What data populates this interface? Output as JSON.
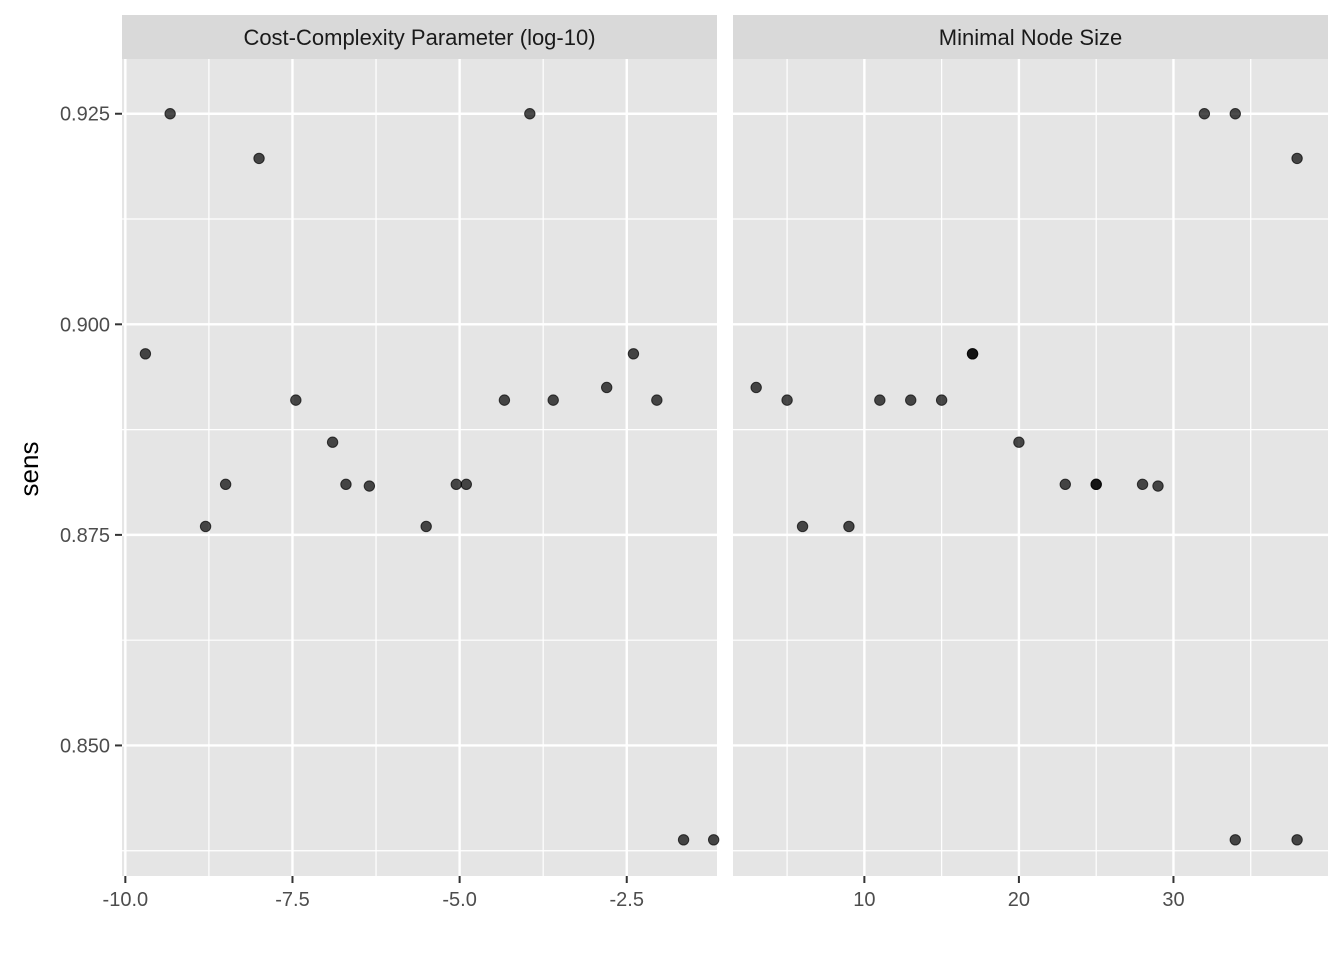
{
  "chart_data": {
    "type": "scatter",
    "ylabel": "sens",
    "ylim": [
      0.8345,
      0.9315
    ],
    "yticks": [
      0.85,
      0.875,
      0.9,
      0.925
    ],
    "ytick_labels": [
      "0.850",
      "0.875",
      "0.900",
      "0.925"
    ],
    "y_minor_ticks": [
      0.8375,
      0.8625,
      0.8875,
      0.9125
    ],
    "grid": true,
    "point_color": "#000000",
    "point_opacity": 0.7,
    "panel_background": "#e5e5e5",
    "strip_background": "#d9d9d9",
    "panels": [
      {
        "title": "Cost-Complexity Parameter (log-10)",
        "xlim": [
          -10.05,
          -1.15
        ],
        "xticks": [
          -10.0,
          -7.5,
          -5.0,
          -2.5
        ],
        "xtick_labels": [
          "-10.0",
          "-7.5",
          "-5.0",
          "-2.5"
        ],
        "x_minor_ticks": [
          -8.75,
          -6.25,
          -3.75
        ],
        "points": [
          {
            "x": -9.7,
            "y": 0.8965
          },
          {
            "x": -9.33,
            "y": 0.925
          },
          {
            "x": -8.8,
            "y": 0.876
          },
          {
            "x": -8.5,
            "y": 0.881
          },
          {
            "x": -8.0,
            "y": 0.9197
          },
          {
            "x": -7.45,
            "y": 0.891
          },
          {
            "x": -6.9,
            "y": 0.886
          },
          {
            "x": -6.7,
            "y": 0.881
          },
          {
            "x": -6.35,
            "y": 0.8808
          },
          {
            "x": -5.5,
            "y": 0.876
          },
          {
            "x": -5.05,
            "y": 0.881
          },
          {
            "x": -4.9,
            "y": 0.881
          },
          {
            "x": -4.33,
            "y": 0.891
          },
          {
            "x": -3.95,
            "y": 0.925
          },
          {
            "x": -3.6,
            "y": 0.891
          },
          {
            "x": -2.8,
            "y": 0.8925
          },
          {
            "x": -2.4,
            "y": 0.8965
          },
          {
            "x": -2.05,
            "y": 0.891
          },
          {
            "x": -1.65,
            "y": 0.8388
          },
          {
            "x": -1.2,
            "y": 0.8388
          }
        ]
      },
      {
        "title": "Minimal Node Size",
        "xlim": [
          1.5,
          40.0
        ],
        "xticks": [
          10,
          20,
          30
        ],
        "xtick_labels": [
          "10",
          "20",
          "30"
        ],
        "x_minor_ticks": [
          5,
          15,
          25,
          35
        ],
        "points": [
          {
            "x": 3,
            "y": 0.8925
          },
          {
            "x": 5,
            "y": 0.891
          },
          {
            "x": 6,
            "y": 0.876
          },
          {
            "x": 9,
            "y": 0.876
          },
          {
            "x": 11,
            "y": 0.891
          },
          {
            "x": 13,
            "y": 0.891
          },
          {
            "x": 15,
            "y": 0.891
          },
          {
            "x": 17,
            "y": 0.8965
          },
          {
            "x": 17,
            "y": 0.8965
          },
          {
            "x": 20,
            "y": 0.886
          },
          {
            "x": 23,
            "y": 0.881
          },
          {
            "x": 25,
            "y": 0.881
          },
          {
            "x": 25,
            "y": 0.881
          },
          {
            "x": 28,
            "y": 0.881
          },
          {
            "x": 29,
            "y": 0.8808
          },
          {
            "x": 32,
            "y": 0.925
          },
          {
            "x": 34,
            "y": 0.925
          },
          {
            "x": 34,
            "y": 0.8388
          },
          {
            "x": 38,
            "y": 0.9197
          },
          {
            "x": 38,
            "y": 0.8388
          }
        ]
      }
    ]
  }
}
